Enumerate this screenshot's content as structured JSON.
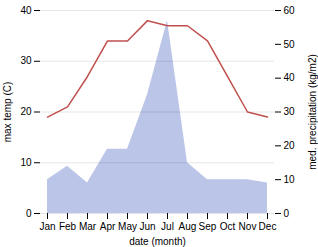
{
  "chart_data": {
    "type": "line",
    "categories": [
      "Jan",
      "Feb",
      "Mar",
      "Apr",
      "May",
      "Jun",
      "Jul",
      "Aug",
      "Sep",
      "Oct",
      "Nov",
      "Dec"
    ],
    "series": [
      {
        "type": "line",
        "color": "#c0504d",
        "values": [
          19,
          21,
          27,
          34,
          34,
          38,
          37,
          37,
          34,
          27,
          20,
          19
        ]
      },
      {
        "type": "area",
        "axis": "y2",
        "color": "#bbc5e8",
        "values": [
          10,
          14,
          9,
          19,
          19,
          35,
          57,
          15,
          10,
          10,
          10,
          9
        ]
      }
    ],
    "xlabel": "date (month)",
    "ylabel": "max temp (C)",
    "y2label": "med. precipitation (kg/m2)",
    "ylim": [
      0,
      40
    ],
    "yticks": [
      0,
      10,
      20,
      30,
      40
    ],
    "y2lim": [
      0,
      60
    ],
    "y2ticks": [
      0,
      10,
      20,
      30,
      40,
      50,
      60
    ],
    "grid": true
  }
}
